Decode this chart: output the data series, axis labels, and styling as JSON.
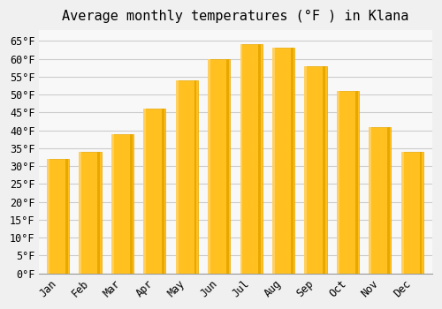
{
  "title": "Average monthly temperatures (°F ) in Klana",
  "months": [
    "Jan",
    "Feb",
    "Mar",
    "Apr",
    "May",
    "Jun",
    "Jul",
    "Aug",
    "Sep",
    "Oct",
    "Nov",
    "Dec"
  ],
  "values": [
    32,
    34,
    39,
    46,
    54,
    60,
    64,
    63,
    58,
    51,
    41,
    34
  ],
  "bar_color_main": "#FFC020",
  "bar_color_edge": "#FFD060",
  "bar_color_shadow": "#E8A800",
  "background_color": "#F0F0F0",
  "plot_bg_color": "#F8F8F8",
  "grid_color": "#CCCCCC",
  "ylim_min": 0,
  "ylim_max": 68,
  "ytick_step": 5,
  "title_fontsize": 11,
  "tick_fontsize": 8.5,
  "font_family": "monospace"
}
